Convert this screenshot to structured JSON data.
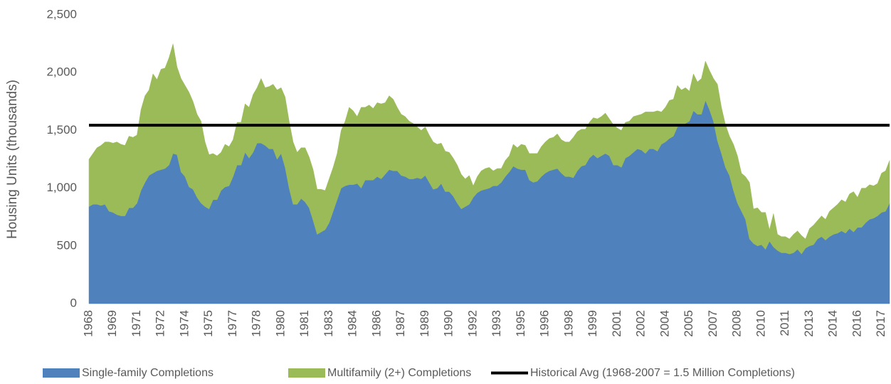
{
  "chart_data": {
    "type": "stacked-area",
    "y_axis_label": "Housing Units (thousands)",
    "ylim": [
      0,
      2500
    ],
    "yticks": [
      0,
      500,
      {
        "value": 1000,
        "label": "1,000"
      },
      {
        "value": 1500,
        "label": "1,500"
      },
      {
        "value": 2000,
        "label": "2,000"
      },
      {
        "value": 2500,
        "label": "2,500"
      }
    ],
    "categories": [
      "1968",
      null,
      null,
      null,
      null,
      null,
      "1969",
      null,
      null,
      null,
      null,
      null,
      "1971",
      null,
      null,
      null,
      null,
      null,
      "1972",
      null,
      null,
      null,
      null,
      null,
      "1974",
      null,
      null,
      null,
      null,
      null,
      "1975",
      null,
      null,
      null,
      null,
      null,
      "1977",
      null,
      null,
      null,
      null,
      null,
      "1978",
      null,
      null,
      null,
      null,
      null,
      "1980",
      null,
      null,
      null,
      null,
      null,
      "1981",
      null,
      null,
      null,
      null,
      null,
      "1983",
      null,
      null,
      null,
      null,
      null,
      "1984",
      null,
      null,
      null,
      null,
      null,
      "1986",
      null,
      null,
      null,
      null,
      null,
      "1987",
      null,
      null,
      null,
      null,
      null,
      "1989",
      null,
      null,
      null,
      null,
      null,
      "1990",
      null,
      null,
      null,
      null,
      null,
      "1992",
      null,
      null,
      null,
      null,
      null,
      "1993",
      null,
      null,
      null,
      null,
      null,
      "1995",
      null,
      null,
      null,
      null,
      null,
      "1996",
      null,
      null,
      null,
      null,
      null,
      "1998",
      null,
      null,
      null,
      null,
      null,
      "1999",
      null,
      null,
      null,
      null,
      null,
      "2001",
      null,
      null,
      null,
      null,
      null,
      "2002",
      null,
      null,
      null,
      null,
      null,
      "2004",
      null,
      null,
      null,
      null,
      null,
      "2005",
      null,
      null,
      null,
      null,
      null,
      "2007",
      null,
      null,
      null,
      null,
      null,
      "2008",
      null,
      null,
      null,
      null,
      null,
      "2010",
      null,
      null,
      null,
      null,
      null,
      "2011",
      null,
      null,
      null,
      null,
      null,
      "2013",
      null,
      null,
      null,
      null,
      null,
      "2014",
      null,
      null,
      null,
      null,
      null,
      "2016",
      null,
      null,
      null,
      null,
      null,
      "2017",
      null,
      null
    ],
    "series": [
      {
        "name": "Single-family Completions",
        "color": "#4f81bd",
        "values": [
          840,
          860,
          860,
          850,
          860,
          800,
          790,
          770,
          760,
          760,
          830,
          830,
          870,
          980,
          1050,
          1110,
          1130,
          1150,
          1160,
          1170,
          1200,
          1300,
          1290,
          1140,
          1100,
          1010,
          990,
          920,
          870,
          840,
          820,
          900,
          900,
          980,
          1010,
          1020,
          1100,
          1200,
          1200,
          1310,
          1260,
          1310,
          1390,
          1390,
          1370,
          1340,
          1340,
          1250,
          1300,
          1180,
          1000,
          860,
          860,
          910,
          880,
          830,
          720,
          600,
          620,
          640,
          700,
          800,
          900,
          1000,
          1020,
          1030,
          1030,
          1040,
          1000,
          1070,
          1070,
          1070,
          1100,
          1080,
          1120,
          1160,
          1150,
          1150,
          1110,
          1100,
          1080,
          1080,
          1090,
          1080,
          1110,
          1050,
          990,
          1000,
          1040,
          970,
          970,
          930,
          870,
          820,
          840,
          860,
          920,
          960,
          980,
          990,
          1000,
          1020,
          1020,
          1050,
          1100,
          1140,
          1190,
          1170,
          1160,
          1160,
          1070,
          1050,
          1060,
          1100,
          1130,
          1150,
          1160,
          1170,
          1130,
          1100,
          1100,
          1090,
          1150,
          1190,
          1200,
          1260,
          1290,
          1260,
          1280,
          1300,
          1280,
          1200,
          1200,
          1180,
          1260,
          1280,
          1310,
          1340,
          1330,
          1300,
          1340,
          1340,
          1320,
          1380,
          1400,
          1430,
          1450,
          1530,
          1540,
          1560,
          1580,
          1670,
          1640,
          1640,
          1760,
          1680,
          1580,
          1410,
          1300,
          1180,
          1110,
          980,
          870,
          800,
          730,
          560,
          520,
          500,
          510,
          470,
          540,
          490,
          460,
          440,
          440,
          430,
          440,
          470,
          430,
          480,
          500,
          510,
          560,
          580,
          550,
          580,
          600,
          610,
          630,
          610,
          650,
          620,
          660,
          660,
          700,
          730,
          740,
          760,
          790,
          800,
          870
        ]
      },
      {
        "name": "Multifamily (2+) Completions",
        "color": "#9bbb59",
        "values": [
          410,
          440,
          490,
          520,
          540,
          600,
          600,
          630,
          620,
          610,
          620,
          610,
          590,
          700,
          750,
          740,
          860,
          790,
          870,
          870,
          930,
          950,
          760,
          810,
          790,
          820,
          760,
          720,
          710,
          560,
          470,
          400,
          380,
          330,
          370,
          340,
          320,
          370,
          370,
          420,
          440,
          500,
          480,
          560,
          500,
          540,
          560,
          600,
          570,
          610,
          580,
          540,
          450,
          440,
          470,
          440,
          440,
          390,
          370,
          340,
          380,
          380,
          400,
          500,
          560,
          670,
          640,
          580,
          700,
          630,
          650,
          620,
          640,
          650,
          620,
          640,
          620,
          550,
          530,
          520,
          500,
          480,
          440,
          420,
          420,
          410,
          410,
          380,
          350,
          350,
          340,
          330,
          330,
          300,
          240,
          250,
          100,
          140,
          170,
          180,
          180,
          130,
          150,
          120,
          140,
          140,
          190,
          180,
          220,
          210,
          230,
          250,
          240,
          260,
          270,
          280,
          280,
          300,
          290,
          300,
          300,
          350,
          340,
          320,
          310,
          310,
          320,
          340,
          340,
          350,
          320,
          350,
          320,
          320,
          310,
          300,
          310,
          290,
          310,
          360,
          320,
          320,
          350,
          280,
          300,
          330,
          320,
          360,
          310,
          310,
          260,
          320,
          280,
          310,
          340,
          340,
          370,
          490,
          400,
          370,
          340,
          400,
          410,
          330,
          370,
          490,
          300,
          330,
          280,
          320,
          100,
          290,
          140,
          140,
          140,
          130,
          160,
          160,
          160,
          80,
          150,
          170,
          160,
          180,
          180,
          220,
          230,
          250,
          270,
          270,
          300,
          350,
          260,
          340,
          300,
          300,
          280,
          280,
          340,
          350,
          370
        ]
      }
    ],
    "reference_line": {
      "name": "Historical Avg (1968-2007 = 1.5 Million Completions)",
      "color": "#000000",
      "value": 1545
    }
  }
}
